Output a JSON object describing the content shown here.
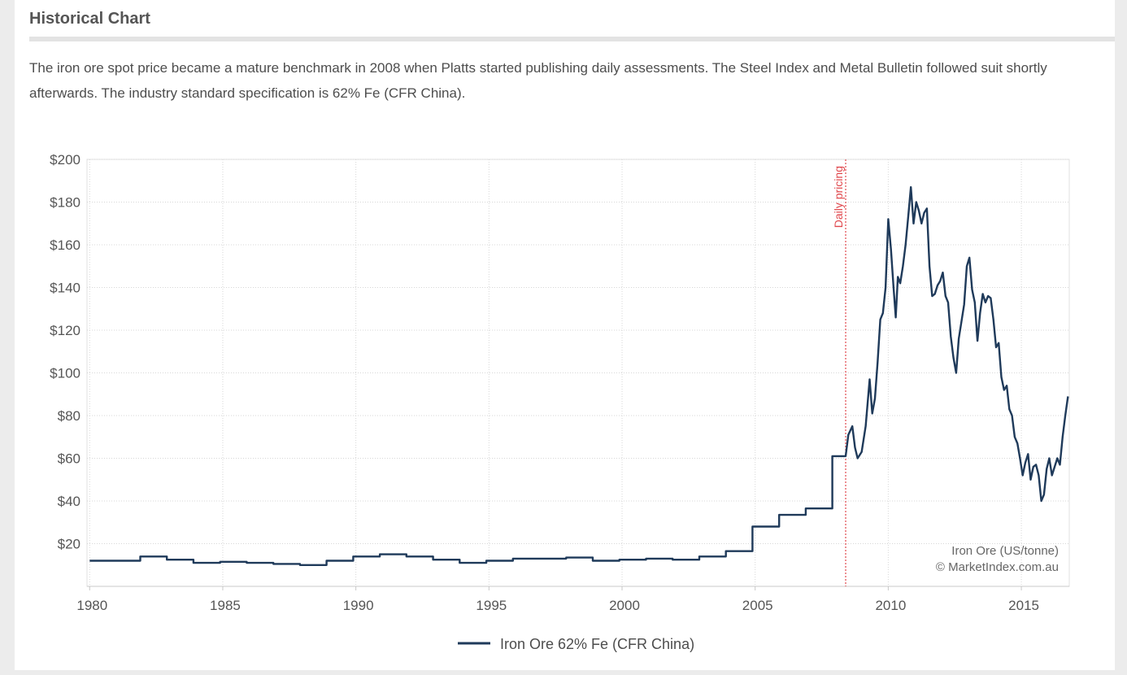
{
  "panel": {
    "title": "Historical Chart",
    "description": "The iron ore spot price became a mature benchmark in 2008 when Platts started publishing daily assessments. The Steel Index and Metal Bulletin followed suit shortly afterwards. The industry standard specification is 62% Fe (CFR China)."
  },
  "colors": {
    "line": "#1f3a5a",
    "annotation": "#e0474c",
    "grid": "#d7d7d7"
  },
  "chart_data": {
    "type": "line",
    "title": "",
    "xlabel": "",
    "ylabel": "",
    "xlim": [
      1979.9,
      2016.8
    ],
    "ylim": [
      0,
      200
    ],
    "x_ticks": [
      1980,
      1985,
      1990,
      1995,
      2000,
      2005,
      2010,
      2015
    ],
    "x_tick_labels": [
      "1980",
      "1985",
      "1990",
      "1995",
      "2000",
      "2005",
      "2010",
      "2015"
    ],
    "y_ticks": [
      20,
      40,
      60,
      80,
      100,
      120,
      140,
      160,
      180,
      200
    ],
    "y_tick_labels": [
      "$20",
      "$40",
      "$60",
      "$80",
      "$100",
      "$120",
      "$140",
      "$160",
      "$180",
      "$200"
    ],
    "grid": true,
    "legend": {
      "position": "bottom-center",
      "entries": [
        "Iron Ore 62% Fe (CFR China)"
      ]
    },
    "credit": [
      "Iron Ore (US/tonne)",
      "© MarketIndex.com.au"
    ],
    "annotations": [
      {
        "x": 2008.4,
        "label": "Daily pricing"
      }
    ],
    "series": [
      {
        "name": "Iron Ore 62% Fe (CFR China)",
        "x": [
          1980.0,
          1981.9,
          1981.9,
          1982.9,
          1982.9,
          1983.9,
          1983.9,
          1984.9,
          1984.9,
          1985.9,
          1985.9,
          1986.9,
          1986.9,
          1987.9,
          1987.9,
          1988.9,
          1988.9,
          1989.9,
          1989.9,
          1990.9,
          1990.9,
          1991.9,
          1991.9,
          1992.9,
          1992.9,
          1993.9,
          1993.9,
          1994.9,
          1994.9,
          1995.9,
          1995.9,
          1996.9,
          1996.9,
          1997.9,
          1997.9,
          1998.9,
          1998.9,
          1999.9,
          1999.9,
          2000.9,
          2000.9,
          2001.9,
          2001.9,
          2002.9,
          2002.9,
          2003.9,
          2003.9,
          2004.9,
          2004.9,
          2005.9,
          2005.9,
          2006.9,
          2006.9,
          2007.9,
          2007.9,
          2008.4,
          2008.5,
          2008.65,
          2008.75,
          2008.85,
          2009.0,
          2009.15,
          2009.3,
          2009.4,
          2009.5,
          2009.6,
          2009.7,
          2009.8,
          2009.9,
          2010.0,
          2010.1,
          2010.2,
          2010.28,
          2010.36,
          2010.45,
          2010.55,
          2010.65,
          2010.75,
          2010.85,
          2010.95,
          2011.05,
          2011.15,
          2011.25,
          2011.35,
          2011.45,
          2011.55,
          2011.65,
          2011.75,
          2011.85,
          2011.95,
          2012.05,
          2012.15,
          2012.25,
          2012.35,
          2012.45,
          2012.55,
          2012.65,
          2012.75,
          2012.85,
          2012.95,
          2013.05,
          2013.15,
          2013.25,
          2013.35,
          2013.45,
          2013.55,
          2013.65,
          2013.75,
          2013.85,
          2013.95,
          2014.05,
          2014.15,
          2014.25,
          2014.35,
          2014.45,
          2014.55,
          2014.65,
          2014.75,
          2014.85,
          2014.95,
          2015.05,
          2015.15,
          2015.25,
          2015.35,
          2015.45,
          2015.55,
          2015.65,
          2015.75,
          2015.85,
          2015.95,
          2016.05,
          2016.15,
          2016.25,
          2016.35,
          2016.45,
          2016.55,
          2016.65,
          2016.75
        ],
        "values": [
          12,
          12,
          14,
          14,
          12.5,
          12.5,
          11,
          11,
          11.5,
          11.5,
          11,
          11,
          10.5,
          10.5,
          10,
          10,
          12,
          12,
          14,
          14,
          15,
          15,
          14,
          14,
          12.5,
          12.5,
          11,
          11,
          12,
          12,
          13,
          13,
          13,
          13,
          13.5,
          13.5,
          12,
          12,
          12.5,
          12.5,
          13,
          13,
          12.5,
          12.5,
          14,
          14,
          16.5,
          16.5,
          28,
          28,
          33.5,
          33.5,
          36.5,
          36.5,
          61,
          61,
          71,
          75,
          65,
          60,
          63,
          75,
          97,
          81,
          88,
          105,
          125,
          128,
          140,
          172,
          158,
          140,
          126,
          145,
          142,
          150,
          160,
          173,
          187,
          170,
          180,
          176,
          170,
          175,
          177,
          150,
          136,
          137,
          141,
          143,
          147,
          136,
          133,
          117,
          107,
          100,
          116,
          124,
          132,
          150,
          154,
          139,
          133,
          115,
          128,
          137,
          133,
          136,
          135,
          125,
          112,
          114,
          98,
          92,
          94,
          83,
          80,
          70,
          67,
          60,
          52,
          58,
          62,
          50,
          56,
          57,
          52,
          40,
          43,
          55,
          60,
          52,
          56,
          60,
          57,
          70,
          80,
          89
        ]
      }
    ]
  }
}
